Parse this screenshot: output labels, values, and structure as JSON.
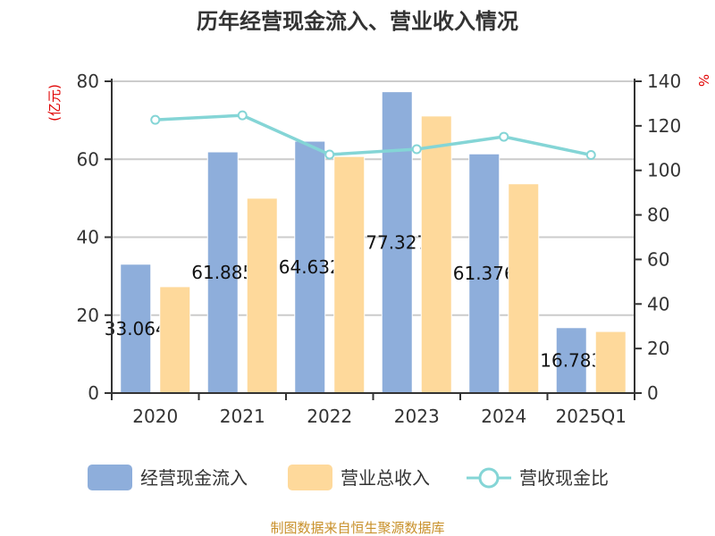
{
  "chart_data": {
    "type": "bar",
    "title": "历年经营现金流入、营业收入情况",
    "categories": [
      "2020",
      "2021",
      "2022",
      "2023",
      "2024",
      "2025Q1"
    ],
    "left_axis": {
      "unit": "(亿元)",
      "ylim": [
        0,
        80
      ],
      "ticks": [
        0,
        20,
        40,
        60,
        80
      ]
    },
    "right_axis": {
      "unit": "%",
      "ylim": [
        0,
        140
      ],
      "ticks": [
        0,
        20,
        40,
        60,
        80,
        100,
        120,
        140
      ]
    },
    "grid": true,
    "legend_position": "bottom",
    "series": [
      {
        "name": "经营现金流入",
        "type": "bar",
        "axis": "left",
        "color": "#8eaedb",
        "values": [
          33.064,
          61.885,
          64.632,
          77.327,
          61.376,
          16.783
        ],
        "labels": [
          "33.064",
          "61.885",
          "64.632",
          "77.327",
          "61.376",
          "16.783"
        ]
      },
      {
        "name": "营业总收入",
        "type": "bar",
        "axis": "left",
        "color": "#fed99b",
        "values": [
          27.3,
          50.0,
          60.7,
          71.1,
          53.7,
          15.8
        ]
      },
      {
        "name": "营收现金比",
        "type": "line",
        "axis": "right",
        "color": "#84d5d6",
        "values": [
          122.7,
          124.7,
          107.1,
          109.5,
          115.1,
          106.9
        ]
      }
    ],
    "source": "制图数据来自恒生聚源数据库"
  }
}
